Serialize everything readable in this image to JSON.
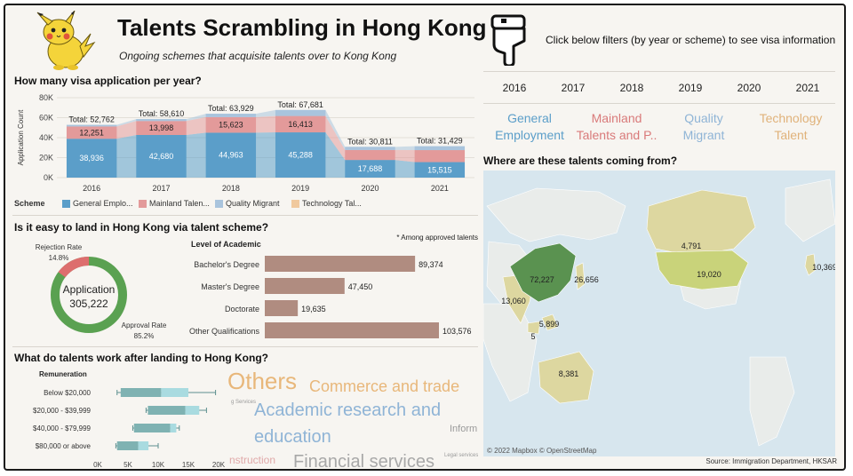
{
  "header": {
    "title": "Talents Scrambling in Hong Kong",
    "subtitle": "Ongoing schemes that acquisite talents over to Kong Kong",
    "mascot_icon": "pikachu-mascot-icon",
    "pointer_icon": "hand-pointing-down-icon",
    "filter_hint": "Click below filters (by year or scheme) to see visa information"
  },
  "filters": {
    "years": [
      "2016",
      "2017",
      "2018",
      "2019",
      "2020",
      "2021"
    ],
    "schemes": [
      {
        "line1": "General",
        "line2": "Employment",
        "color": "#5b9ec9"
      },
      {
        "line1": "Mainland",
        "line2": "Talents and P..",
        "color": "#d97a7a"
      },
      {
        "line1": "Quality",
        "line2": "Migrant",
        "color": "#8fb4d6"
      },
      {
        "line1": "Technology",
        "line2": "Talent",
        "color": "#e0b27a"
      }
    ]
  },
  "visa_chart": {
    "title": "How many visa application per year?",
    "chart_data": {
      "type": "area",
      "categories": [
        "2016",
        "2017",
        "2018",
        "2019",
        "2020",
        "2021"
      ],
      "ylabel": "Application Count",
      "ylim": [
        0,
        80000
      ],
      "yticks": [
        "80K",
        "60K",
        "40K",
        "20K",
        "0K"
      ],
      "series": [
        {
          "name": "General Emplo...",
          "color": "#5b9ec9",
          "values": [
            38936,
            42680,
            44963,
            45288,
            17688,
            15515
          ]
        },
        {
          "name": "Mainland Talen...",
          "color": "#e39a9a",
          "values": [
            12251,
            13998,
            15623,
            16413,
            10000,
            12000
          ]
        },
        {
          "name": "Quality Migrant",
          "color": "#a9c4dd",
          "values": [
            1575,
            1932,
            3343,
            5980,
            3123,
            3914
          ]
        },
        {
          "name": "Technology Tal...",
          "color": "#f0c99e",
          "values": [
            0,
            0,
            0,
            0,
            0,
            0
          ]
        }
      ],
      "totals": [
        "Total: 52,762",
        "Total: 58,610",
        "Total: 63,929",
        "Total: 67,681",
        "Total: 30,811",
        "Total: 31,429"
      ],
      "total_values": [
        52762,
        58610,
        63929,
        67681,
        30811,
        31429
      ],
      "general_labels": [
        "38,936",
        "42,680",
        "44,963",
        "45,288",
        "17,688",
        "15,515"
      ],
      "mainland_labels": [
        "12,251",
        "13,998",
        "15,623",
        "16,413",
        "",
        ""
      ],
      "legend_title": "Scheme"
    }
  },
  "land_chart": {
    "title": "Is it easy to land in Hong Kong via talent scheme?",
    "donut": {
      "rejection_label": "Rejection Rate",
      "rejection_value": "14.8%",
      "rejection_fraction": 0.148,
      "approval_label": "Approval Rate",
      "approval_value": "85.2%",
      "center_label": "Application",
      "center_value": "305,222",
      "approve_color": "#5aa151",
      "reject_color": "#dd6e6e"
    },
    "academic": {
      "header": "Level of Academic",
      "note": "* Among approved talents",
      "bar_color": "#b08c80",
      "chart_data": {
        "type": "bar",
        "categories": [
          "Bachelor's Degree",
          "Master's Degree",
          "Doctorate",
          "Other Qualifications"
        ],
        "values": [
          89374,
          47450,
          19635,
          103576
        ],
        "labels": [
          "89,374",
          "47,450",
          "19,635",
          "103,576"
        ]
      }
    }
  },
  "work_chart": {
    "title": "What do talents work after landing to Hong Kong?",
    "remuneration_header": "Remuneration",
    "xticks": [
      "0K",
      "5K",
      "10K",
      "15K",
      "20K"
    ],
    "box_color": "#7fb2b2",
    "box_light": "#a9dbe0",
    "chart_data": {
      "type": "boxplot",
      "categories": [
        "Below $20,000",
        "$20,000 - $39,999",
        "$40,000 - $79,999",
        "$80,000 or above"
      ],
      "xlim": [
        0,
        20000
      ],
      "boxes": [
        {
          "min": 3200,
          "q1": 3800,
          "median": 10500,
          "q3": 15000,
          "max": 19500
        },
        {
          "min": 8000,
          "q1": 8300,
          "median": 14500,
          "q3": 16800,
          "max": 18000
        },
        {
          "min": 5800,
          "q1": 6000,
          "median": 12000,
          "q3": 13000,
          "max": 13500
        },
        {
          "min": 3000,
          "q1": 3200,
          "median": 6700,
          "q3": 8400,
          "max": 10000
        }
      ]
    },
    "wordcloud": [
      {
        "text": "Others",
        "color": "#e8b77a"
      },
      {
        "text": "Commerce and trade",
        "color": "#e8b77a"
      },
      {
        "text": "Academic research and",
        "color": "#8fb4d6"
      },
      {
        "text": "education",
        "color": "#8fb4d6"
      },
      {
        "text": "Financial services",
        "color": "#a8a8a8"
      },
      {
        "text": "Inform",
        "color": "#9a9a9a"
      },
      {
        "text": "nstruction",
        "color": "#e0a9a9"
      },
      {
        "text": "g Services",
        "color": "#9a9a9a"
      },
      {
        "text": "Legal services",
        "color": "#9a9a9a"
      }
    ]
  },
  "map": {
    "title": "Where are these talents coming from?",
    "ocean_color": "#d7e6ee",
    "attribution": "© 2022 Mapbox  © OpenStreetMap",
    "labels": [
      {
        "region": "China",
        "value": "72,227"
      },
      {
        "region": "Japan",
        "value": "26,656"
      },
      {
        "region": "India",
        "value": "13,060"
      },
      {
        "region": "Philippines",
        "value": "5,899"
      },
      {
        "region": "Malaysia",
        "value": "5"
      },
      {
        "region": "Australia",
        "value": "8,381"
      },
      {
        "region": "Canada",
        "value": "4,791"
      },
      {
        "region": "United States",
        "value": "19,020"
      },
      {
        "region": "United Kingdom",
        "value": "10,369"
      }
    ]
  },
  "source": "Source: Immigration Department, HKSAR"
}
